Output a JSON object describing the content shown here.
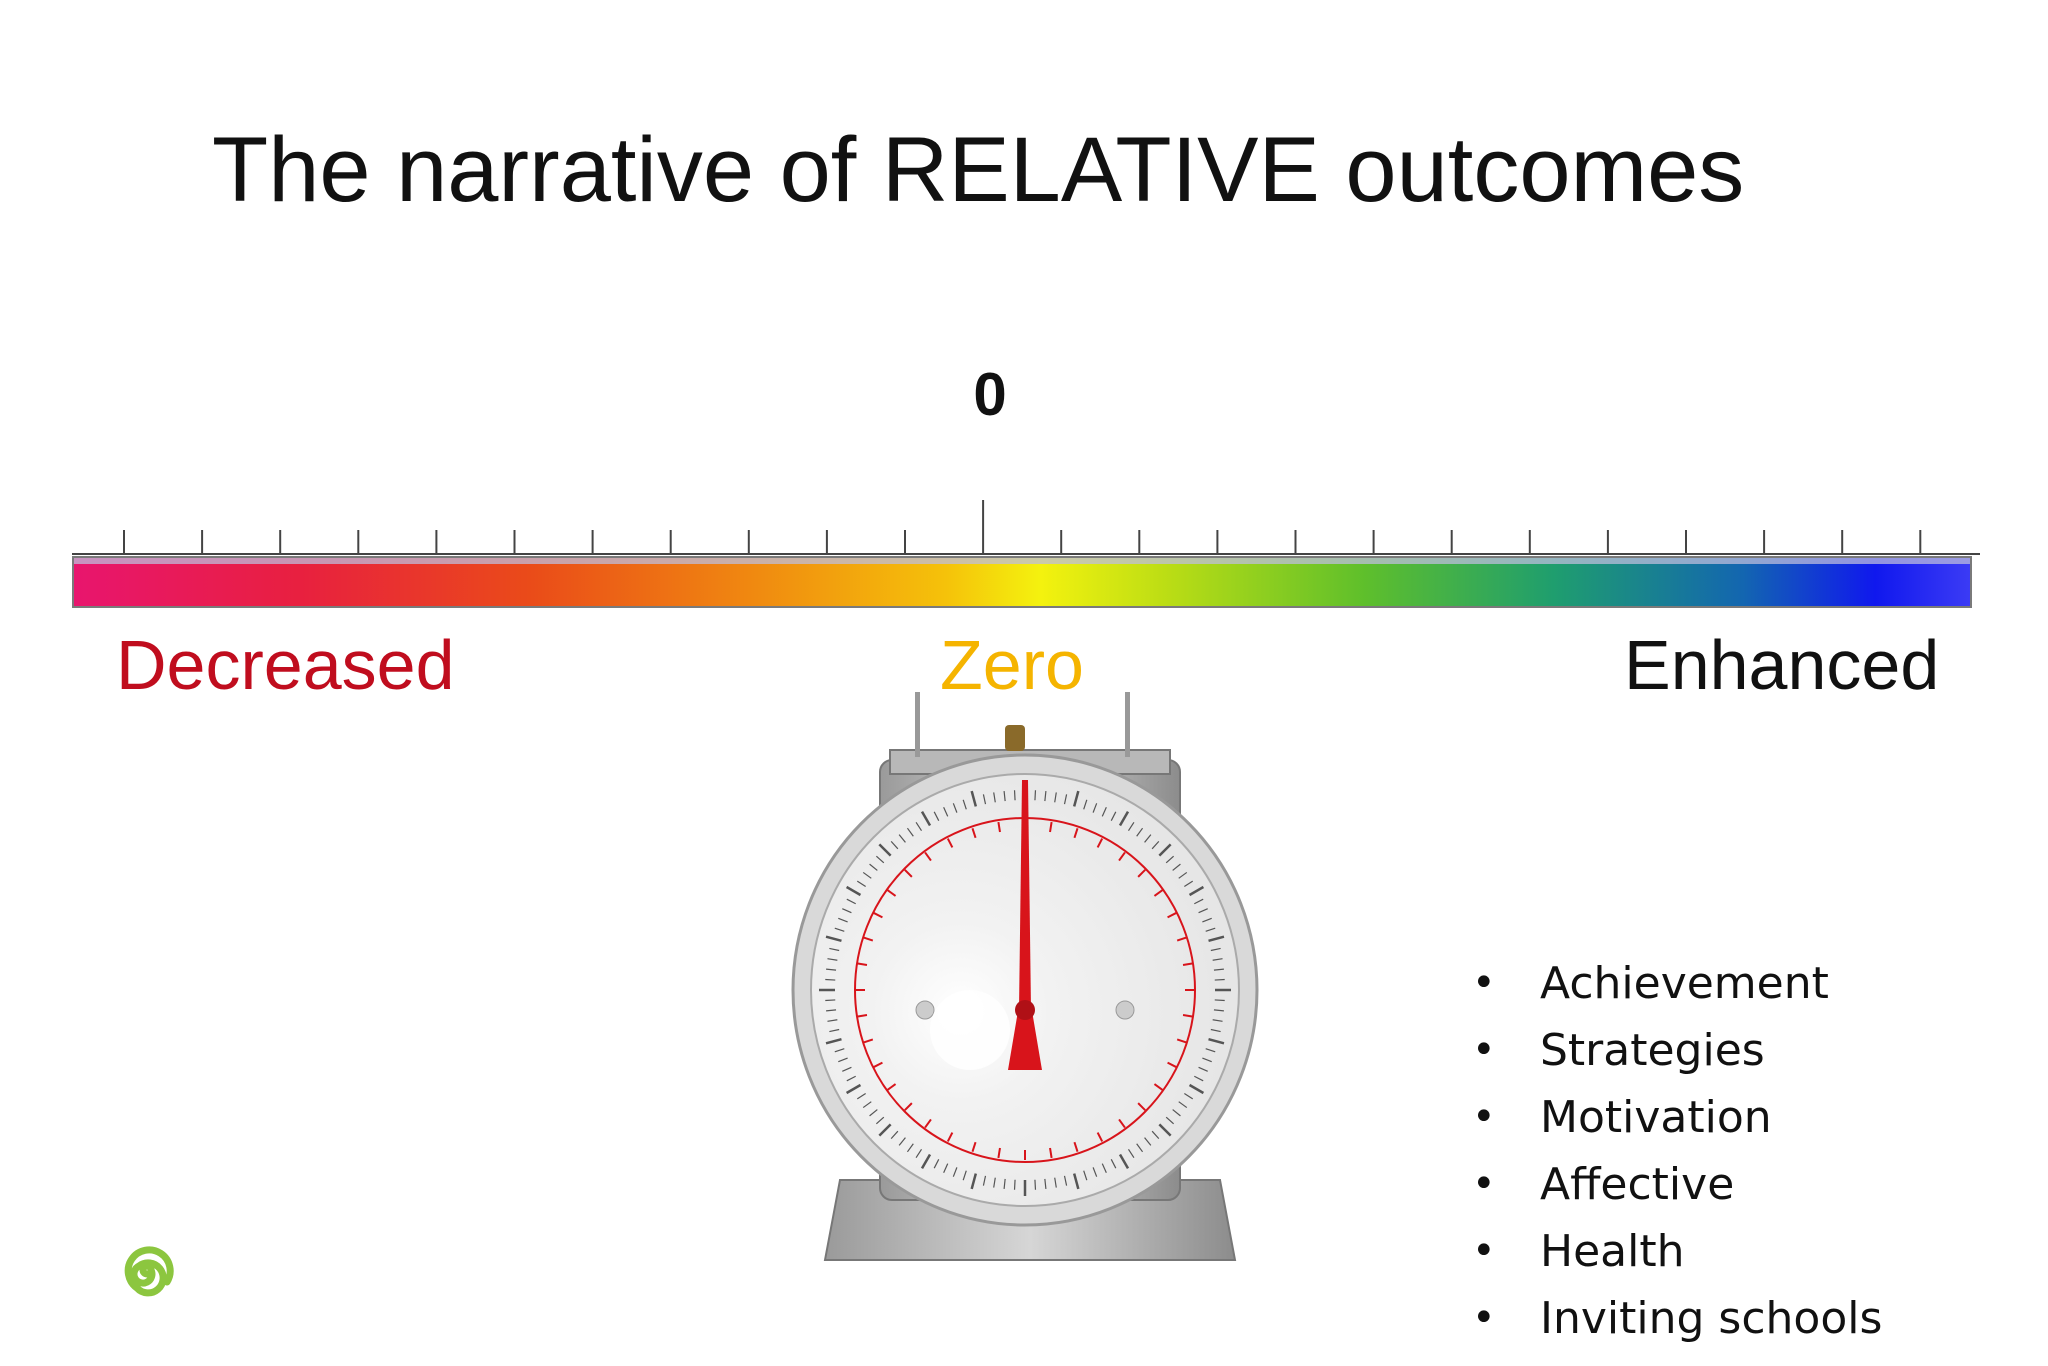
{
  "slide": {
    "title": "The narrative of RELATIVE outcomes",
    "zero_mark": "0",
    "scale_labels": {
      "decreased": "Decreased",
      "zero": "Zero",
      "enhanced": "Enhanced"
    },
    "outcomes": [
      "Achievement",
      "Strategies",
      "Motivation",
      "Affective",
      "Health",
      "Inviting schools"
    ],
    "bullet_char": "•",
    "colors": {
      "decreased": "#c00d1e",
      "zero": "#f5b400",
      "enhanced": "#111111",
      "logo": "#8cc63f",
      "needle": "#d8141b"
    },
    "icons": {
      "scale_image": "kitchen-scale-icon",
      "logo": "green-spiral-logo-icon"
    }
  }
}
